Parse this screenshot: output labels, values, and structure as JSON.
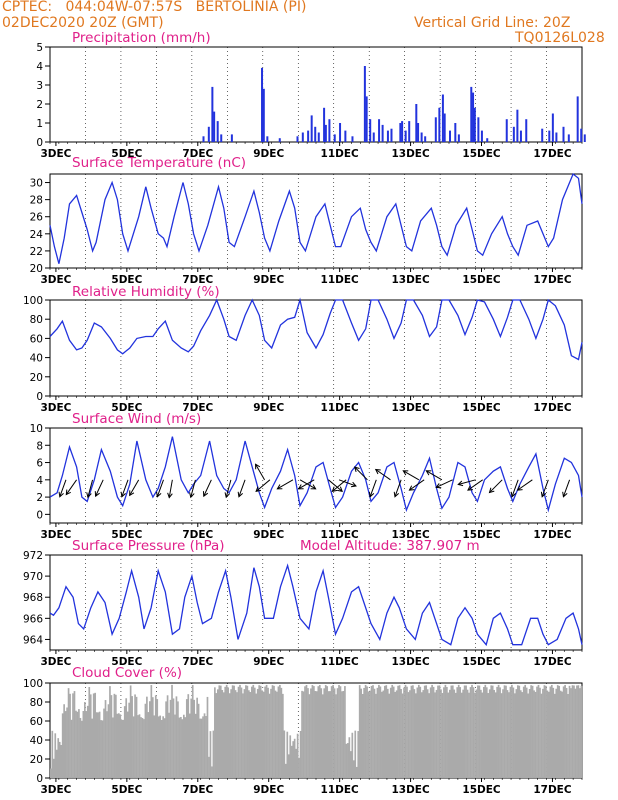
{
  "header": {
    "line1_left": "CPTEC:   044:04W-07:57S   BERTOLINIA (PI)",
    "line2_left": "02DEC2020 20Z (GMT)",
    "line2_right": "Vertical Grid Line: 20Z",
    "line3_right": "TQ0126L028"
  },
  "x_axis": {
    "ticks": [
      "3DEC",
      "5DEC",
      "7DEC",
      "9DEC",
      "11DEC",
      "13DEC",
      "15DEC",
      "17DEC"
    ]
  },
  "colors": {
    "series": "#2233dd",
    "cloud": "#aaaaaa",
    "title": "#e0208a",
    "header": "#e07820"
  },
  "chart_data": [
    {
      "type": "bar",
      "title": "Precipitation (mm/h)",
      "ylim": [
        0,
        5
      ],
      "yticks": [
        0,
        1,
        2,
        3,
        4,
        5
      ],
      "x_range_days": [
        "02DEC2020 20Z",
        "17DEC2020 20Z"
      ],
      "events": [
        {
          "t": 4.3,
          "v": 0.3
        },
        {
          "t": 4.45,
          "v": 0.8
        },
        {
          "t": 4.55,
          "v": 2.9
        },
        {
          "t": 4.6,
          "v": 1.6
        },
        {
          "t": 4.7,
          "v": 1.1
        },
        {
          "t": 4.8,
          "v": 0.4
        },
        {
          "t": 5.1,
          "v": 0.4
        },
        {
          "t": 5.95,
          "v": 3.9
        },
        {
          "t": 6.0,
          "v": 2.8
        },
        {
          "t": 6.1,
          "v": 0.3
        },
        {
          "t": 6.45,
          "v": 0.2
        },
        {
          "t": 6.95,
          "v": 0.3
        },
        {
          "t": 7.1,
          "v": 0.5
        },
        {
          "t": 7.25,
          "v": 0.6
        },
        {
          "t": 7.35,
          "v": 1.4
        },
        {
          "t": 7.45,
          "v": 0.8
        },
        {
          "t": 7.55,
          "v": 0.5
        },
        {
          "t": 7.7,
          "v": 1.8
        },
        {
          "t": 7.75,
          "v": 0.9
        },
        {
          "t": 7.85,
          "v": 1.2
        },
        {
          "t": 8.0,
          "v": 0.4
        },
        {
          "t": 8.15,
          "v": 1.0
        },
        {
          "t": 8.3,
          "v": 0.6
        },
        {
          "t": 8.5,
          "v": 0.3
        },
        {
          "t": 8.85,
          "v": 4.0
        },
        {
          "t": 8.9,
          "v": 2.4
        },
        {
          "t": 9.0,
          "v": 1.2
        },
        {
          "t": 9.1,
          "v": 0.5
        },
        {
          "t": 9.25,
          "v": 1.2
        },
        {
          "t": 9.35,
          "v": 0.9
        },
        {
          "t": 9.5,
          "v": 0.6
        },
        {
          "t": 9.6,
          "v": 0.7
        },
        {
          "t": 9.85,
          "v": 1.0
        },
        {
          "t": 9.9,
          "v": 1.1
        },
        {
          "t": 10.0,
          "v": 0.6
        },
        {
          "t": 10.1,
          "v": 1.1
        },
        {
          "t": 10.3,
          "v": 2.0
        },
        {
          "t": 10.35,
          "v": 1.0
        },
        {
          "t": 10.45,
          "v": 0.5
        },
        {
          "t": 10.55,
          "v": 0.3
        },
        {
          "t": 10.85,
          "v": 1.3
        },
        {
          "t": 10.95,
          "v": 1.8
        },
        {
          "t": 11.05,
          "v": 2.5
        },
        {
          "t": 11.1,
          "v": 1.5
        },
        {
          "t": 11.25,
          "v": 0.6
        },
        {
          "t": 11.4,
          "v": 1.0
        },
        {
          "t": 11.5,
          "v": 0.4
        },
        {
          "t": 11.85,
          "v": 2.9
        },
        {
          "t": 11.9,
          "v": 2.6
        },
        {
          "t": 11.95,
          "v": 1.8
        },
        {
          "t": 12.05,
          "v": 1.3
        },
        {
          "t": 12.15,
          "v": 0.6
        },
        {
          "t": 12.3,
          "v": 0.2
        },
        {
          "t": 12.85,
          "v": 1.2
        },
        {
          "t": 13.05,
          "v": 0.8
        },
        {
          "t": 13.15,
          "v": 1.7
        },
        {
          "t": 13.25,
          "v": 0.6
        },
        {
          "t": 13.4,
          "v": 1.2
        },
        {
          "t": 13.85,
          "v": 0.7
        },
        {
          "t": 14.05,
          "v": 0.6
        },
        {
          "t": 14.15,
          "v": 1.5
        },
        {
          "t": 14.25,
          "v": 0.5
        },
        {
          "t": 14.45,
          "v": 0.8
        },
        {
          "t": 14.6,
          "v": 0.4
        },
        {
          "t": 14.85,
          "v": 2.4
        },
        {
          "t": 14.95,
          "v": 0.7
        },
        {
          "t": 15.05,
          "v": 0.4
        }
      ]
    },
    {
      "type": "line",
      "title": "Surface Temperature (nC)",
      "ylim": [
        20,
        31
      ],
      "yticks": [
        20,
        22,
        24,
        26,
        28,
        30
      ],
      "x": [
        0,
        0.125,
        0.25,
        0.4,
        0.55,
        0.75,
        0.9,
        1.05,
        1.2,
        1.3,
        1.55,
        1.75,
        1.9,
        2.05,
        2.2,
        2.5,
        2.7,
        2.85,
        3.05,
        3.2,
        3.3,
        3.5,
        3.75,
        3.9,
        4.05,
        4.2,
        4.45,
        4.75,
        4.9,
        5.05,
        5.2,
        5.5,
        5.75,
        5.9,
        6.05,
        6.2,
        6.45,
        6.75,
        6.9,
        7.05,
        7.2,
        7.5,
        7.75,
        7.9,
        8.05,
        8.2,
        8.5,
        8.75,
        8.9,
        9.05,
        9.2,
        9.5,
        9.75,
        9.9,
        10.05,
        10.2,
        10.45,
        10.75,
        10.9,
        11.05,
        11.2,
        11.45,
        11.75,
        11.9,
        12.05,
        12.2,
        12.45,
        12.75,
        12.9,
        13.05,
        13.2,
        13.45,
        13.75,
        13.9,
        14.05,
        14.2,
        14.45,
        14.75,
        14.9,
        15.0
      ],
      "values": [
        25.0,
        22.5,
        20.5,
        23.5,
        27.5,
        28.5,
        26.5,
        24.5,
        22.0,
        23.0,
        28.0,
        30.0,
        28.0,
        24.0,
        22.0,
        26.0,
        29.5,
        27.0,
        24.0,
        23.5,
        22.5,
        26.0,
        30.0,
        27.5,
        24.0,
        22.0,
        25.0,
        29.5,
        27.0,
        23.0,
        22.5,
        26.0,
        29.0,
        26.5,
        23.5,
        22.0,
        25.5,
        29.0,
        27.0,
        23.0,
        22.0,
        26.0,
        27.5,
        25.0,
        22.5,
        22.5,
        26.0,
        27.0,
        24.5,
        23.0,
        22.0,
        26.0,
        27.5,
        25.0,
        22.5,
        22.0,
        25.5,
        27.0,
        25.0,
        22.5,
        21.5,
        25.0,
        27.0,
        24.5,
        22.0,
        21.5,
        24.0,
        26.0,
        24.0,
        22.5,
        21.5,
        25.0,
        25.5,
        24.0,
        22.5,
        23.5,
        28.0,
        31.0,
        30.5,
        27.5
      ]
    },
    {
      "type": "line",
      "title": "Relative Humidity (%)",
      "ylim": [
        0,
        100
      ],
      "yticks": [
        0,
        20,
        40,
        60,
        80,
        100
      ],
      "x": [
        0,
        0.2,
        0.35,
        0.55,
        0.75,
        0.9,
        1.05,
        1.25,
        1.45,
        1.7,
        1.9,
        2.05,
        2.25,
        2.45,
        2.7,
        2.9,
        3.05,
        3.25,
        3.45,
        3.7,
        3.9,
        4.05,
        4.25,
        4.5,
        4.7,
        4.9,
        5.05,
        5.25,
        5.5,
        5.7,
        5.9,
        6.05,
        6.25,
        6.5,
        6.7,
        6.9,
        7.05,
        7.25,
        7.5,
        7.7,
        7.9,
        8.05,
        8.25,
        8.5,
        8.7,
        8.9,
        9.05,
        9.25,
        9.5,
        9.7,
        9.9,
        10.05,
        10.25,
        10.5,
        10.7,
        10.9,
        11.05,
        11.25,
        11.5,
        11.7,
        11.9,
        12.05,
        12.25,
        12.5,
        12.7,
        12.9,
        13.05,
        13.25,
        13.5,
        13.7,
        13.9,
        14.05,
        14.25,
        14.5,
        14.7,
        14.9,
        15.0
      ],
      "values": [
        62,
        70,
        78,
        58,
        48,
        50,
        58,
        76,
        72,
        60,
        48,
        44,
        50,
        60,
        62,
        62,
        70,
        78,
        58,
        50,
        46,
        52,
        68,
        84,
        100,
        80,
        62,
        58,
        84,
        100,
        84,
        58,
        50,
        74,
        80,
        82,
        100,
        66,
        50,
        64,
        86,
        100,
        100,
        76,
        58,
        70,
        100,
        100,
        80,
        60,
        76,
        100,
        100,
        84,
        62,
        72,
        100,
        100,
        84,
        64,
        82,
        100,
        98,
        80,
        62,
        82,
        100,
        100,
        80,
        60,
        80,
        100,
        94,
        74,
        42,
        38,
        56
      ]
    },
    {
      "type": "line",
      "title": "Surface Wind (m/s)",
      "ylim": [
        -1,
        10
      ],
      "yticks": [
        0,
        2,
        4,
        6,
        8,
        10
      ],
      "x": [
        0,
        0.2,
        0.35,
        0.55,
        0.75,
        0.9,
        1.05,
        1.25,
        1.45,
        1.7,
        1.9,
        2.05,
        2.25,
        2.45,
        2.7,
        2.9,
        3.05,
        3.25,
        3.45,
        3.7,
        3.9,
        4.05,
        4.25,
        4.5,
        4.7,
        4.9,
        5.05,
        5.25,
        5.5,
        5.7,
        5.9,
        6.05,
        6.25,
        6.5,
        6.7,
        6.9,
        7.05,
        7.25,
        7.5,
        7.7,
        7.9,
        8.05,
        8.25,
        8.5,
        8.7,
        8.9,
        9.05,
        9.25,
        9.5,
        9.7,
        9.9,
        10.05,
        10.25,
        10.5,
        10.7,
        10.9,
        11.05,
        11.25,
        11.5,
        11.7,
        11.9,
        12.05,
        12.25,
        12.5,
        12.7,
        12.9,
        13.05,
        13.25,
        13.5,
        13.7,
        13.9,
        14.05,
        14.25,
        14.5,
        14.7,
        14.9,
        15.0
      ],
      "values": [
        2.0,
        2.5,
        4.5,
        7.8,
        5.5,
        2.0,
        1.5,
        4.0,
        7.5,
        5.0,
        2.0,
        1.0,
        3.5,
        8.5,
        4.0,
        2.0,
        3.0,
        5.5,
        9.0,
        4.0,
        2.5,
        3.5,
        4.5,
        8.5,
        4.5,
        3.0,
        2.5,
        4.0,
        8.5,
        5.5,
        2.5,
        0.8,
        3.0,
        5.0,
        7.5,
        4.5,
        1.0,
        2.5,
        5.5,
        6.0,
        3.0,
        0.8,
        2.0,
        5.0,
        6.0,
        4.0,
        1.5,
        2.5,
        5.5,
        6.0,
        3.0,
        0.5,
        2.5,
        4.5,
        6.5,
        3.0,
        0.7,
        2.0,
        6.0,
        5.5,
        2.5,
        1.5,
        4.0,
        5.0,
        5.5,
        3.0,
        1.5,
        3.5,
        5.5,
        7.0,
        3.0,
        0.5,
        3.5,
        6.5,
        6.0,
        4.5,
        2.0
      ],
      "wind_vectors": [
        {
          "t": 0.45,
          "dir_deg": 200
        },
        {
          "t": 0.75,
          "dir_deg": 215
        },
        {
          "t": 1.2,
          "dir_deg": 195
        },
        {
          "t": 1.5,
          "dir_deg": 205
        },
        {
          "t": 2.2,
          "dir_deg": 200
        },
        {
          "t": 2.5,
          "dir_deg": 210
        },
        {
          "t": 3.2,
          "dir_deg": 200
        },
        {
          "t": 3.45,
          "dir_deg": 190
        },
        {
          "t": 4.1,
          "dir_deg": 195
        },
        {
          "t": 4.55,
          "dir_deg": 205
        },
        {
          "t": 5.1,
          "dir_deg": 195
        },
        {
          "t": 5.5,
          "dir_deg": 200
        },
        {
          "t": 6.05,
          "dir_deg": 330
        },
        {
          "t": 6.2,
          "dir_deg": 230
        },
        {
          "t": 6.85,
          "dir_deg": 240
        },
        {
          "t": 7.05,
          "dir_deg": 120
        },
        {
          "t": 7.45,
          "dir_deg": 240
        },
        {
          "t": 7.85,
          "dir_deg": 130
        },
        {
          "t": 8.15,
          "dir_deg": 110
        },
        {
          "t": 8.35,
          "dir_deg": 230
        },
        {
          "t": 8.95,
          "dir_deg": 315
        },
        {
          "t": 9.2,
          "dir_deg": 200
        },
        {
          "t": 9.6,
          "dir_deg": 305
        },
        {
          "t": 9.9,
          "dir_deg": 200
        },
        {
          "t": 10.4,
          "dir_deg": 300
        },
        {
          "t": 10.55,
          "dir_deg": 235
        },
        {
          "t": 11.05,
          "dir_deg": 300
        },
        {
          "t": 11.35,
          "dir_deg": 245
        },
        {
          "t": 12.0,
          "dir_deg": 255
        },
        {
          "t": 12.2,
          "dir_deg": 235
        },
        {
          "t": 12.75,
          "dir_deg": 225
        },
        {
          "t": 13.2,
          "dir_deg": 200
        },
        {
          "t": 13.6,
          "dir_deg": 235
        },
        {
          "t": 14.05,
          "dir_deg": 200
        },
        {
          "t": 14.65,
          "dir_deg": 200
        }
      ]
    },
    {
      "type": "line",
      "title": "Surface Pressure (hPa)",
      "annotation": "Model Altitude: 387.907 m",
      "ylim": [
        963,
        972
      ],
      "yticks": [
        964,
        966,
        968,
        970,
        972
      ],
      "x": [
        0,
        0.1,
        0.25,
        0.45,
        0.65,
        0.8,
        0.95,
        1.15,
        1.35,
        1.55,
        1.75,
        1.95,
        2.15,
        2.3,
        2.5,
        2.65,
        2.85,
        3.05,
        3.25,
        3.45,
        3.65,
        3.8,
        4.0,
        4.15,
        4.3,
        4.55,
        4.75,
        4.95,
        5.1,
        5.3,
        5.55,
        5.75,
        5.9,
        6.05,
        6.3,
        6.5,
        6.7,
        6.85,
        7.05,
        7.3,
        7.5,
        7.7,
        7.85,
        8.05,
        8.25,
        8.5,
        8.7,
        8.85,
        9.05,
        9.3,
        9.5,
        9.7,
        9.85,
        10.05,
        10.3,
        10.5,
        10.7,
        10.85,
        11.05,
        11.3,
        11.5,
        11.7,
        11.9,
        12.05,
        12.3,
        12.5,
        12.7,
        12.9,
        13.05,
        13.3,
        13.55,
        13.75,
        13.9,
        14.05,
        14.3,
        14.55,
        14.75,
        14.9,
        15.0
      ],
      "values": [
        966.5,
        966.3,
        967.0,
        969.0,
        968.0,
        965.5,
        965.0,
        967.0,
        968.5,
        967.5,
        964.5,
        966.0,
        968.5,
        970.5,
        968.0,
        965.0,
        967.0,
        970.5,
        968.5,
        964.5,
        965.0,
        968.0,
        970.0,
        967.5,
        965.5,
        966.0,
        968.5,
        970.5,
        968.0,
        964.0,
        966.5,
        970.8,
        969.0,
        966.0,
        966.0,
        969.0,
        971.0,
        969.0,
        966.0,
        965.0,
        968.5,
        970.5,
        968.0,
        964.5,
        966.0,
        968.5,
        969.0,
        967.5,
        965.5,
        964.0,
        966.5,
        968.0,
        967.0,
        965.0,
        964.0,
        966.5,
        967.5,
        966.0,
        964.0,
        963.5,
        966.0,
        967.0,
        966.0,
        964.5,
        963.5,
        966.0,
        966.5,
        965.0,
        963.5,
        963.5,
        966.0,
        966.0,
        964.5,
        963.5,
        964.0,
        966.0,
        966.5,
        965.0,
        963.5
      ]
    },
    {
      "type": "bar",
      "title": "Cloud Cover (%)",
      "ylim": [
        0,
        100
      ],
      "yticks": [
        0,
        20,
        40,
        60,
        80,
        100
      ]
    }
  ]
}
